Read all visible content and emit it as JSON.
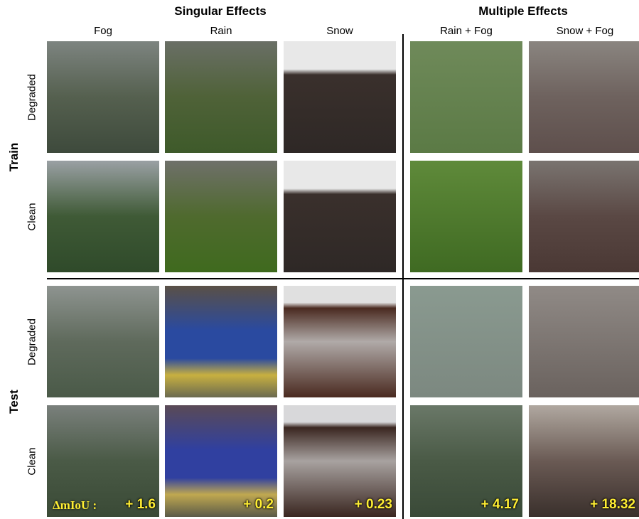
{
  "header": {
    "singular": "Singular Effects",
    "multiple": "Multiple Effects"
  },
  "columns": [
    "Fog",
    "Rain",
    "Snow",
    "Rain + Fog",
    "Snow + Fog"
  ],
  "groups": [
    {
      "label": "Train",
      "rows": [
        "Degraded",
        "Clean"
      ]
    },
    {
      "label": "Test",
      "rows": [
        "Degraded",
        "Clean"
      ]
    }
  ],
  "metric_label": "ΔmIoU :",
  "deltas": [
    "+ 1.6",
    "+ 0.2",
    "+ 0.23",
    "+ 4.17",
    "+ 18.32"
  ]
}
